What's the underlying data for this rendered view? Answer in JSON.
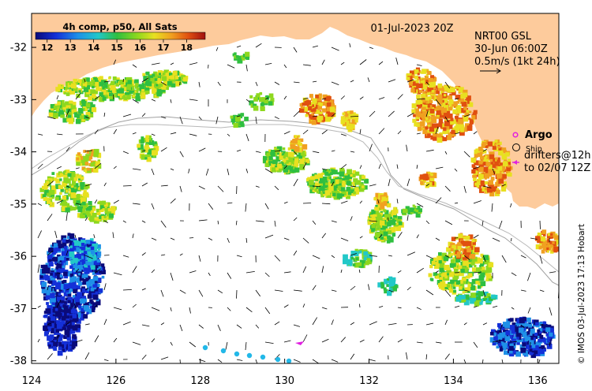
{
  "map": {
    "product_label": "4h comp, p50, All Sats",
    "valid_time": "01-Jul-2023 20Z",
    "current_product": "NRT00 GSL",
    "current_time": "30-Jun 06:00Z",
    "vector_scale_label": "0.5m/s (1kt 24h)",
    "credit": "© IMOS 03-Jul-2023 17:13 Hobart",
    "colorbar": {
      "ticks": [
        "12",
        "13",
        "14",
        "15",
        "16",
        "17",
        "18"
      ],
      "min": 11.5,
      "max": 18.8,
      "colors": [
        "#0a0a7a",
        "#1430d8",
        "#1e90e8",
        "#22c8c8",
        "#2fbf40",
        "#8ed81e",
        "#e8e020",
        "#f0a020",
        "#e05010",
        "#a01010"
      ]
    },
    "legend": {
      "argo_label": "Argo",
      "ship_label": "Ship",
      "drifters_line1": "drifters@12h",
      "drifters_line2": "to 02/07 12Z",
      "argo_color": "#e020e0",
      "drifter_color": "#e020e0"
    },
    "axes": {
      "x_ticks": [
        "124",
        "126",
        "128",
        "130",
        "132",
        "134",
        "136"
      ],
      "y_ticks": [
        "-32",
        "-33",
        "-34",
        "-35",
        "-36",
        "-37",
        "-38"
      ],
      "lon_range": [
        124,
        136.5
      ],
      "lat_range": [
        -38.05,
        -31.35
      ]
    },
    "land_color": "#fdcb9c",
    "shelf_line_color": "#a0a0a0"
  }
}
